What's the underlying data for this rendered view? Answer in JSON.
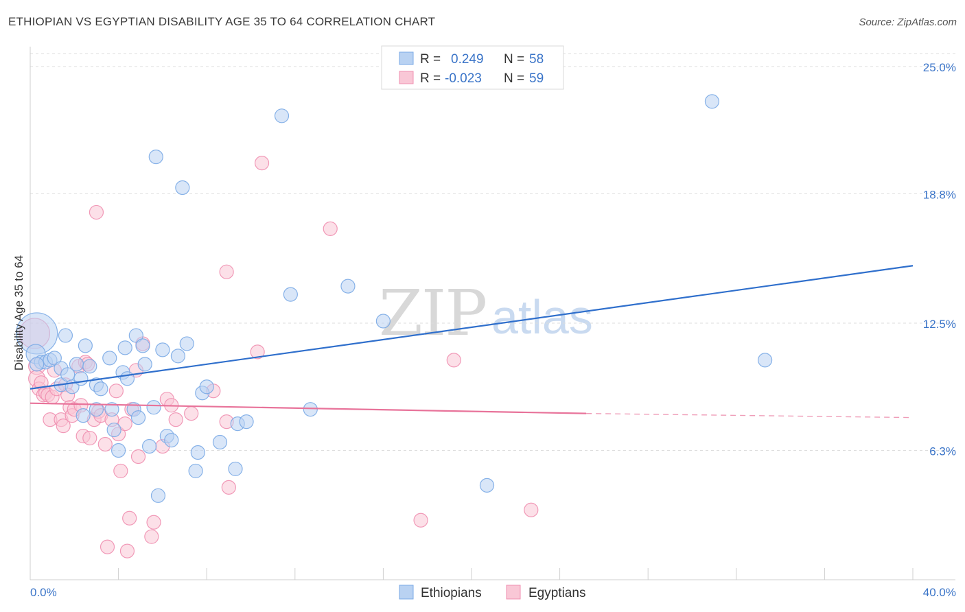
{
  "header": {
    "title": "ETHIOPIAN VS EGYPTIAN DISABILITY AGE 35 TO 64 CORRELATION CHART",
    "source": "Source: ZipAtlas.com"
  },
  "watermark": {
    "zip": "ZIP",
    "atlas": "atlas"
  },
  "legend": {
    "rows": [
      {
        "r_label": "R =",
        "r_value": "0.249",
        "n_label": "N =",
        "n_value": "58",
        "color": "#7aaae6",
        "fill": "#b9d2f2"
      },
      {
        "r_label": "R =",
        "r_value": "-0.023",
        "n_label": "N =",
        "n_value": "59",
        "color": "#f08fb0",
        "fill": "#f9c7d6"
      }
    ]
  },
  "bottom_legend": {
    "items": [
      "Ethiopians",
      "Egyptians"
    ]
  },
  "colors": {
    "blue_point": "#7aaae6",
    "blue_fill": "#b9d2f2",
    "blue_line": "#2f6fcc",
    "pink_point": "#f08fb0",
    "pink_fill": "#f9c7d6",
    "pink_line": "#e8739a",
    "grid": "#dddddd",
    "tick_label": "#3a74c8"
  },
  "chart_data": {
    "type": "scatter",
    "title": "ETHIOPIAN VS EGYPTIAN DISABILITY AGE 35 TO 64 CORRELATION CHART",
    "xlabel": "",
    "ylabel": "Disability Age 35 to 64",
    "xlim": [
      0,
      40
    ],
    "ylim": [
      0,
      25.9
    ],
    "x_tick_labels": [
      "0.0%",
      "40.0%"
    ],
    "y_ticks": [
      6.3,
      12.5,
      18.8,
      25.0
    ],
    "y_tick_labels": [
      "6.3%",
      "12.5%",
      "18.8%",
      "25.0%"
    ],
    "grid": true,
    "legend_position": "top-center",
    "series": [
      {
        "name": "Ethiopians",
        "r": 0.249,
        "n": 58,
        "trend": {
          "x": [
            0,
            40
          ],
          "y": [
            9.3,
            15.3
          ],
          "style": "solid"
        },
        "points": [
          [
            0.3,
            12.0
          ],
          [
            0.25,
            11.0
          ],
          [
            0.5,
            10.6
          ],
          [
            0.7,
            10.6
          ],
          [
            0.9,
            10.7
          ],
          [
            1.1,
            10.8
          ],
          [
            1.4,
            10.3
          ],
          [
            1.6,
            11.9
          ],
          [
            1.4,
            9.5
          ],
          [
            1.7,
            10.0
          ],
          [
            1.9,
            9.4
          ],
          [
            2.1,
            10.5
          ],
          [
            2.3,
            9.8
          ],
          [
            2.5,
            11.4
          ],
          [
            2.7,
            10.4
          ],
          [
            3.0,
            9.5
          ],
          [
            3.2,
            9.3
          ],
          [
            2.4,
            8.0
          ],
          [
            3.0,
            8.3
          ],
          [
            3.6,
            10.8
          ],
          [
            3.7,
            8.3
          ],
          [
            3.8,
            7.3
          ],
          [
            4.0,
            6.3
          ],
          [
            4.2,
            10.1
          ],
          [
            4.3,
            11.3
          ],
          [
            4.4,
            9.8
          ],
          [
            4.7,
            8.3
          ],
          [
            4.8,
            11.9
          ],
          [
            4.9,
            7.9
          ],
          [
            5.1,
            11.4
          ],
          [
            5.2,
            10.5
          ],
          [
            5.4,
            6.5
          ],
          [
            5.6,
            8.4
          ],
          [
            5.8,
            4.1
          ],
          [
            5.7,
            20.6
          ],
          [
            6.0,
            11.2
          ],
          [
            6.2,
            7.0
          ],
          [
            6.4,
            6.8
          ],
          [
            6.7,
            10.9
          ],
          [
            6.9,
            19.1
          ],
          [
            7.1,
            11.5
          ],
          [
            7.5,
            5.3
          ],
          [
            7.6,
            6.2
          ],
          [
            7.8,
            9.1
          ],
          [
            8.0,
            9.4
          ],
          [
            8.6,
            6.7
          ],
          [
            9.3,
            5.4
          ],
          [
            9.4,
            7.6
          ],
          [
            9.8,
            7.7
          ],
          [
            11.4,
            22.6
          ],
          [
            11.8,
            13.9
          ],
          [
            12.7,
            8.3
          ],
          [
            14.4,
            14.3
          ],
          [
            16.0,
            12.6
          ],
          [
            20.7,
            4.6
          ],
          [
            30.9,
            23.3
          ],
          [
            33.3,
            10.7
          ],
          [
            0.3,
            10.5
          ]
        ],
        "sizes": [
          30,
          14,
          10,
          10,
          10,
          10,
          10,
          10,
          10,
          10,
          10,
          10,
          10,
          10,
          10,
          10,
          10,
          10,
          10,
          10,
          10,
          10,
          10,
          10,
          10,
          10,
          10,
          10,
          10,
          10,
          10,
          10,
          10,
          10,
          10,
          10,
          10,
          10,
          10,
          10,
          10,
          10,
          10,
          10,
          10,
          10,
          10,
          10,
          10,
          10,
          10,
          10,
          10,
          10,
          10,
          10,
          10,
          10
        ]
      },
      {
        "name": "Egyptians",
        "r": -0.023,
        "n": 59,
        "trend": {
          "x": [
            0,
            25.2
          ],
          "y": [
            8.6,
            8.1
          ],
          "style": "solid",
          "dash_extension": {
            "x": [
              25.2,
              40
            ],
            "y": [
              8.1,
              7.9
            ]
          }
        },
        "points": [
          [
            0.2,
            12.0
          ],
          [
            0.3,
            10.4
          ],
          [
            0.3,
            9.8
          ],
          [
            0.4,
            9.3
          ],
          [
            0.5,
            9.6
          ],
          [
            0.6,
            9.0
          ],
          [
            0.7,
            9.1
          ],
          [
            0.8,
            9.0
          ],
          [
            0.9,
            7.8
          ],
          [
            1.0,
            8.9
          ],
          [
            1.1,
            10.2
          ],
          [
            1.2,
            9.3
          ],
          [
            1.4,
            7.8
          ],
          [
            1.5,
            7.5
          ],
          [
            1.6,
            9.5
          ],
          [
            1.7,
            9.0
          ],
          [
            1.8,
            8.4
          ],
          [
            1.9,
            8.0
          ],
          [
            2.0,
            8.3
          ],
          [
            2.2,
            10.4
          ],
          [
            2.3,
            8.5
          ],
          [
            2.4,
            7.0
          ],
          [
            2.5,
            10.6
          ],
          [
            2.6,
            10.5
          ],
          [
            2.7,
            6.9
          ],
          [
            2.9,
            7.8
          ],
          [
            3.0,
            17.9
          ],
          [
            3.1,
            8.2
          ],
          [
            3.2,
            8.0
          ],
          [
            3.4,
            6.6
          ],
          [
            3.5,
            1.6
          ],
          [
            3.7,
            7.8
          ],
          [
            3.9,
            9.2
          ],
          [
            4.0,
            7.1
          ],
          [
            4.1,
            5.3
          ],
          [
            4.3,
            7.6
          ],
          [
            4.4,
            1.4
          ],
          [
            4.5,
            3.0
          ],
          [
            4.6,
            8.3
          ],
          [
            4.8,
            10.2
          ],
          [
            4.9,
            6.0
          ],
          [
            5.1,
            11.5
          ],
          [
            5.5,
            2.1
          ],
          [
            5.6,
            2.8
          ],
          [
            6.0,
            6.5
          ],
          [
            6.2,
            8.8
          ],
          [
            6.4,
            8.5
          ],
          [
            6.6,
            7.8
          ],
          [
            7.3,
            8.1
          ],
          [
            8.3,
            9.2
          ],
          [
            8.9,
            15.0
          ],
          [
            8.9,
            7.7
          ],
          [
            9.0,
            4.5
          ],
          [
            10.3,
            11.1
          ],
          [
            10.5,
            20.3
          ],
          [
            13.6,
            17.1
          ],
          [
            17.7,
            2.9
          ],
          [
            19.2,
            10.7
          ],
          [
            22.7,
            3.4
          ]
        ],
        "sizes": [
          22,
          12,
          12,
          10,
          10,
          10,
          10,
          10,
          10,
          10,
          10,
          10,
          10,
          10,
          10,
          10,
          10,
          10,
          10,
          10,
          10,
          10,
          10,
          10,
          10,
          10,
          10,
          10,
          10,
          10,
          10,
          10,
          10,
          10,
          10,
          10,
          10,
          10,
          10,
          10,
          10,
          10,
          10,
          10,
          10,
          10,
          10,
          10,
          10,
          10,
          10,
          10,
          10,
          10,
          10,
          10,
          10,
          10,
          10
        ]
      }
    ]
  }
}
